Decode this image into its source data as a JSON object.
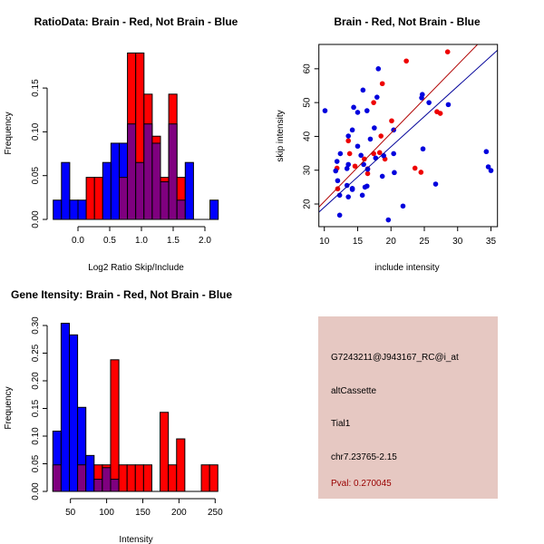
{
  "chart_data": [
    {
      "type": "bar",
      "title": "RatioData: Brain - Red, Not Brain - Blue",
      "xlabel": "Log2 Ratio Skip/Include",
      "ylabel": "Frequency",
      "bin_start": -0.39,
      "bin_width": 0.13,
      "xticks": [
        "0.0",
        "0.5",
        "1.0",
        "1.5",
        "2.0"
      ],
      "xtick_values": [
        0,
        0.5,
        1,
        1.5,
        2
      ],
      "yticks": [
        "0.00",
        "0.05",
        "0.10",
        "0.15"
      ],
      "ytick_values": [
        0,
        0.05,
        0.1,
        0.15
      ],
      "series": [
        {
          "name": "Brain",
          "color": "#ff0000",
          "values": [
            0,
            0,
            0,
            0,
            0.048,
            0.048,
            0,
            0,
            0.048,
            0.19,
            0.19,
            0.143,
            0.095,
            0.048,
            0.143,
            0.048,
            0,
            0,
            0,
            0
          ]
        },
        {
          "name": "Not Brain",
          "color": "#0000ff",
          "values": [
            0.022,
            0.065,
            0.022,
            0.022,
            0,
            0,
            0.065,
            0.087,
            0.087,
            0.109,
            0.065,
            0.109,
            0.087,
            0.043,
            0.109,
            0.022,
            0.065,
            0,
            0,
            0.022
          ]
        }
      ],
      "overlap_color": "#7f007f"
    },
    {
      "type": "scatter",
      "title": "Brain - Red, Not Brain - Blue",
      "xlabel": "include intensity",
      "ylabel": "skip intensity",
      "xlim": [
        9.18,
        35.98
      ],
      "ylim": [
        13.3,
        67.2
      ],
      "xticks": [
        "10",
        "15",
        "20",
        "25",
        "30",
        "35"
      ],
      "xtick_values": [
        10,
        15,
        20,
        25,
        30,
        35
      ],
      "yticks": [
        "20",
        "30",
        "40",
        "50",
        "60"
      ],
      "ytick_values": [
        20,
        30,
        40,
        50,
        60
      ],
      "series": [
        {
          "name": "Brain",
          "color": "#ee0000",
          "points": [
            [
              28.5,
              65
            ],
            [
              22.3,
              62.3
            ],
            [
              18.7,
              55.6
            ],
            [
              17.4,
              50
            ],
            [
              20.1,
              44.6
            ],
            [
              26.9,
              47.3
            ],
            [
              27.4,
              46.8
            ],
            [
              13.6,
              38.7
            ],
            [
              18.5,
              40.1
            ],
            [
              13.8,
              34.9
            ],
            [
              17.4,
              34.9
            ],
            [
              18.3,
              35.2
            ],
            [
              16,
              33.3
            ],
            [
              19.1,
              33.3
            ],
            [
              14.6,
              31.2
            ],
            [
              11.9,
              30.6
            ],
            [
              16.5,
              30.4
            ],
            [
              16.5,
              29
            ],
            [
              23.6,
              30.6
            ],
            [
              24.5,
              29.4
            ],
            [
              12,
              24.5
            ]
          ],
          "fit": {
            "slope": 2.02,
            "intercept": 0.56,
            "color": "#b00000"
          }
        },
        {
          "name": "Not Brain",
          "color": "#0000dd",
          "points": [
            [
              10.1,
              47.6
            ],
            [
              18.1,
              60
            ],
            [
              15.8,
              53.7
            ],
            [
              17.9,
              51.6
            ],
            [
              14.4,
              48.6
            ],
            [
              16.4,
              47.6
            ],
            [
              15,
              47.1
            ],
            [
              24.6,
              51.4
            ],
            [
              24.7,
              52.4
            ],
            [
              25.7,
              50
            ],
            [
              28.6,
              49.4
            ],
            [
              14.2,
              41.9
            ],
            [
              17.5,
              42.5
            ],
            [
              20.4,
              41.9
            ],
            [
              13.6,
              40.1
            ],
            [
              16.9,
              39.2
            ],
            [
              15,
              37.1
            ],
            [
              12.4,
              34.9
            ],
            [
              15.5,
              34.4
            ],
            [
              17.7,
              33.6
            ],
            [
              18.9,
              34.3
            ],
            [
              20.4,
              34.9
            ],
            [
              24.8,
              36.3
            ],
            [
              11.9,
              32.6
            ],
            [
              13.6,
              31.7
            ],
            [
              15.9,
              31.7
            ],
            [
              13.4,
              30.5
            ],
            [
              11.7,
              29.8
            ],
            [
              16.5,
              30.3
            ],
            [
              20.5,
              29.3
            ],
            [
              18.7,
              28.2
            ],
            [
              12,
              26.9
            ],
            [
              13.4,
              25.5
            ],
            [
              14.2,
              24.6
            ],
            [
              14.2,
              24.3
            ],
            [
              16.1,
              25
            ],
            [
              16.4,
              25.3
            ],
            [
              26.7,
              25.9
            ],
            [
              12.3,
              22.6
            ],
            [
              15.7,
              22.6
            ],
            [
              13.6,
              22.1
            ],
            [
              21.8,
              19.4
            ],
            [
              12.3,
              16.7
            ],
            [
              19.6,
              15.3
            ],
            [
              34.3,
              35.5
            ],
            [
              34.6,
              31
            ],
            [
              35,
              29.9
            ]
          ],
          "fit": {
            "slope": 1.787,
            "intercept": 1.2,
            "color": "#000099"
          }
        }
      ]
    },
    {
      "type": "bar",
      "title": "Gene Itensity: Brain - Red, Not Brain - Blue",
      "xlabel": "Intensity",
      "ylabel": "Frequency",
      "bin_start": 25.7,
      "bin_width": 11.4,
      "xticks": [
        "50",
        "100",
        "150",
        "200",
        "250"
      ],
      "xtick_values": [
        50,
        100,
        150,
        200,
        250
      ],
      "yticks": [
        "0.00",
        "0.05",
        "0.10",
        "0.15",
        "0.20",
        "0.25",
        "0.30"
      ],
      "ytick_values": [
        0,
        0.05,
        0.1,
        0.15,
        0.2,
        0.25,
        0.3
      ],
      "series": [
        {
          "name": "Brain",
          "color": "#ff0000",
          "values": [
            0.048,
            0,
            0,
            0.048,
            0,
            0.048,
            0.048,
            0.238,
            0.048,
            0.048,
            0.048,
            0.048,
            0,
            0.143,
            0.048,
            0.095,
            0,
            0,
            0.048,
            0.048
          ]
        },
        {
          "name": "Not Brain",
          "color": "#0000ff",
          "values": [
            0.109,
            0.304,
            0.283,
            0.152,
            0.065,
            0.022,
            0.043,
            0.022,
            0,
            0,
            0,
            0,
            0,
            0,
            0,
            0,
            0,
            0,
            0,
            0
          ]
        }
      ],
      "overlap_color": "#7f007f"
    }
  ],
  "info": {
    "probe": "G7243211@J943167_RC@i_at",
    "type": "altCassette",
    "gene": "Tial1",
    "location": "chr7.23765-2.15",
    "pval": "Pval: 0.270045",
    "bg_color": "#e6c8c2",
    "pval_color": "#990000"
  }
}
